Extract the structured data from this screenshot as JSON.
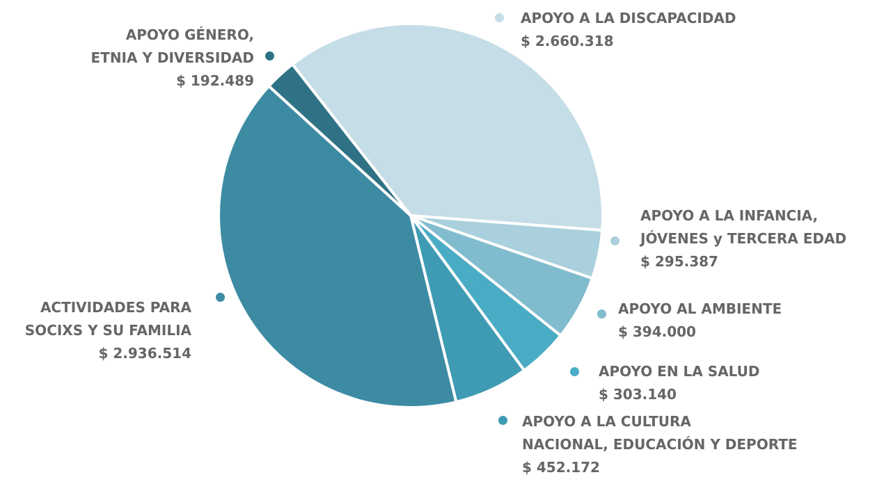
{
  "chart_data": {
    "type": "pie",
    "categories": [
      "APOYO A LA DISCAPACIDAD",
      "APOYO A LA INFANCIA,\nJÓVENES y TERCERA EDAD",
      "APOYO AL AMBIENTE",
      "APOYO EN LA SALUD",
      "APOYO A LA CULTURA\nNACIONAL, EDUCACIÓN Y DEPORTE",
      "ACTIVIDADES PARA\nSOCIXS Y SU FAMILIA",
      "APOYO GÉNERO,\nETNIA Y DIVERSIDAD"
    ],
    "values": [
      2660318,
      295387,
      394000,
      303140,
      452172,
      2936514,
      192489
    ],
    "value_labels": [
      "$ 2.660.318",
      "$ 295.387",
      "$ 394.000",
      "$ 303.140",
      "$ 452.172",
      "$ 2.936.514",
      "$ 192.489"
    ],
    "colors": [
      "#c5dde6",
      "#a9d0dc",
      "#80bccd",
      "#4aacc4",
      "#3f9bb3",
      "#3d8ba3",
      "#2f7285"
    ]
  }
}
